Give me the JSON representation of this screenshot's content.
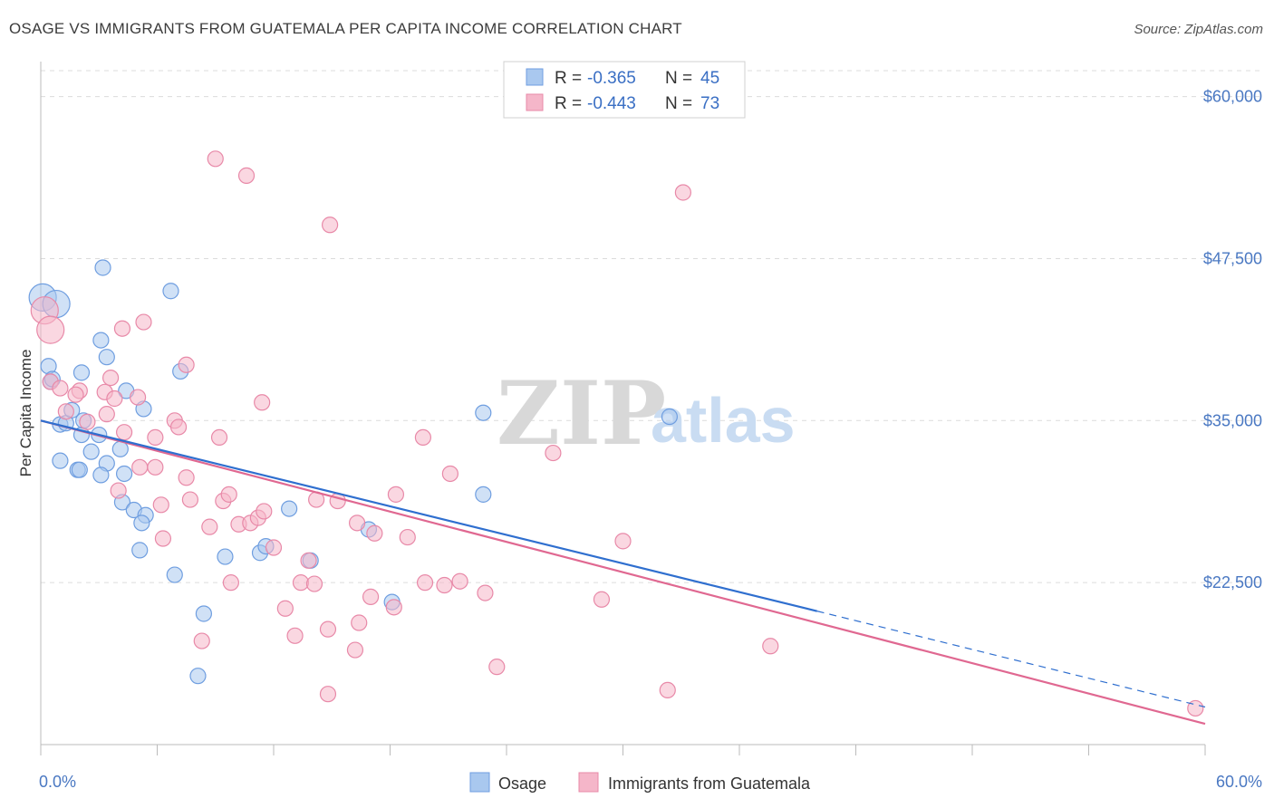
{
  "header": {
    "title": "OSAGE VS IMMIGRANTS FROM GUATEMALA PER CAPITA INCOME CORRELATION CHART",
    "source": "Source: ZipAtlas.com"
  },
  "watermark": {
    "zip": "ZIP",
    "atlas": "atlas"
  },
  "legend": {
    "rows": [
      {
        "r_label": "R =",
        "r_value": "-0.365",
        "n_label": "N =",
        "n_value": "45",
        "color": "#a9c8ef"
      },
      {
        "r_label": "R =",
        "r_value": "-0.443",
        "n_label": "N =",
        "n_value": "73",
        "color": "#f5b6c9"
      }
    ]
  },
  "bottom_legend": {
    "items": [
      {
        "label": "Osage"
      },
      {
        "label": "Immigrants from Guatemala"
      }
    ]
  },
  "colors": {
    "osage_fill": "#a9c8ef",
    "osage_stroke": "#6f9ee0",
    "osage_line": "#2f6fcf",
    "guat_fill": "#f5b6c9",
    "guat_stroke": "#e889a8",
    "guat_line": "#e06891"
  },
  "chart_data": {
    "type": "scatter",
    "title": "OSAGE VS IMMIGRANTS FROM GUATEMALA PER CAPITA INCOME CORRELATION CHART",
    "xlabel": "",
    "ylabel": "Per Capita Income",
    "xlim": [
      0,
      60
    ],
    "ylim": [
      10000,
      62000
    ],
    "x_tick_labels": [
      "0.0%",
      "60.0%"
    ],
    "y_ticks": [
      22500,
      35000,
      47500,
      60000
    ],
    "y_tick_labels": [
      "$22,500",
      "$35,000",
      "$47,500",
      "$60,000"
    ],
    "grid": true,
    "legend_position": "top-center",
    "series": [
      {
        "name": "Osage",
        "r": -0.365,
        "n": 45,
        "trend": {
          "x0": 0,
          "y0": 35000,
          "x1": 40,
          "y1": 20300,
          "dashed_to_x": 60,
          "dashed_to_y": 12900
        },
        "points": [
          [
            0.1,
            44500
          ],
          [
            0.8,
            44000
          ],
          [
            0.4,
            39200
          ],
          [
            0.5,
            38000
          ],
          [
            0.6,
            38200
          ],
          [
            2.1,
            38700
          ],
          [
            3.1,
            41200
          ],
          [
            3.4,
            39900
          ],
          [
            4.4,
            37300
          ],
          [
            3.2,
            46800
          ],
          [
            6.7,
            45000
          ],
          [
            7.2,
            38800
          ],
          [
            1.0,
            34700
          ],
          [
            1.3,
            34800
          ],
          [
            1.6,
            35800
          ],
          [
            3.0,
            33900
          ],
          [
            2.1,
            33900
          ],
          [
            2.6,
            32600
          ],
          [
            4.1,
            32800
          ],
          [
            5.3,
            35900
          ],
          [
            1.0,
            31900
          ],
          [
            1.9,
            31200
          ],
          [
            2.0,
            31200
          ],
          [
            3.4,
            31700
          ],
          [
            3.1,
            30800
          ],
          [
            4.3,
            30900
          ],
          [
            4.2,
            28700
          ],
          [
            4.8,
            28100
          ],
          [
            5.4,
            27700
          ],
          [
            5.2,
            27100
          ],
          [
            5.1,
            25000
          ],
          [
            9.5,
            24500
          ],
          [
            11.3,
            24800
          ],
          [
            11.6,
            25300
          ],
          [
            12.8,
            28200
          ],
          [
            13.9,
            24200
          ],
          [
            16.9,
            26600
          ],
          [
            6.9,
            23100
          ],
          [
            8.4,
            20100
          ],
          [
            8.1,
            15300
          ],
          [
            18.1,
            21000
          ],
          [
            22.8,
            35600
          ],
          [
            22.8,
            29300
          ],
          [
            32.4,
            35300
          ],
          [
            2.2,
            35000
          ]
        ]
      },
      {
        "name": "Immigrants from Guatemala",
        "r": -0.443,
        "n": 73,
        "trend": {
          "x0": 0,
          "y0": 35000,
          "x1": 60,
          "y1": 11600
        },
        "points": [
          [
            0.2,
            43500
          ],
          [
            0.5,
            42000
          ],
          [
            9.0,
            55200
          ],
          [
            10.6,
            53900
          ],
          [
            14.9,
            50100
          ],
          [
            33.1,
            52600
          ],
          [
            4.2,
            42100
          ],
          [
            5.3,
            42600
          ],
          [
            7.5,
            39300
          ],
          [
            0.5,
            38000
          ],
          [
            1.0,
            37500
          ],
          [
            2.0,
            37300
          ],
          [
            1.8,
            37000
          ],
          [
            3.3,
            37200
          ],
          [
            3.6,
            38300
          ],
          [
            3.8,
            36700
          ],
          [
            5.0,
            36800
          ],
          [
            1.3,
            35700
          ],
          [
            2.4,
            34900
          ],
          [
            3.4,
            35500
          ],
          [
            6.9,
            35000
          ],
          [
            7.1,
            34500
          ],
          [
            4.3,
            34100
          ],
          [
            5.9,
            33700
          ],
          [
            9.2,
            33700
          ],
          [
            11.4,
            36400
          ],
          [
            19.7,
            33700
          ],
          [
            26.4,
            32500
          ],
          [
            5.1,
            31400
          ],
          [
            5.9,
            31400
          ],
          [
            7.5,
            30600
          ],
          [
            21.1,
            30900
          ],
          [
            4.0,
            29600
          ],
          [
            6.2,
            28500
          ],
          [
            7.7,
            28900
          ],
          [
            9.4,
            28800
          ],
          [
            9.7,
            29300
          ],
          [
            14.2,
            28900
          ],
          [
            15.3,
            28800
          ],
          [
            18.3,
            29300
          ],
          [
            10.2,
            27000
          ],
          [
            10.8,
            27100
          ],
          [
            11.2,
            27500
          ],
          [
            11.5,
            28000
          ],
          [
            8.7,
            26800
          ],
          [
            6.3,
            25900
          ],
          [
            12.0,
            25200
          ],
          [
            16.3,
            27100
          ],
          [
            17.2,
            26300
          ],
          [
            18.9,
            26000
          ],
          [
            30.0,
            25700
          ],
          [
            13.8,
            24200
          ],
          [
            9.8,
            22500
          ],
          [
            13.4,
            22500
          ],
          [
            14.1,
            22400
          ],
          [
            19.8,
            22500
          ],
          [
            20.8,
            22300
          ],
          [
            21.6,
            22600
          ],
          [
            22.9,
            21700
          ],
          [
            17.0,
            21400
          ],
          [
            18.2,
            20600
          ],
          [
            12.6,
            20500
          ],
          [
            28.9,
            21200
          ],
          [
            16.4,
            19400
          ],
          [
            13.1,
            18400
          ],
          [
            14.8,
            18900
          ],
          [
            8.3,
            18000
          ],
          [
            16.2,
            17300
          ],
          [
            37.6,
            17600
          ],
          [
            23.5,
            16000
          ],
          [
            14.8,
            13900
          ],
          [
            32.3,
            14200
          ],
          [
            59.5,
            12800
          ]
        ]
      }
    ]
  }
}
